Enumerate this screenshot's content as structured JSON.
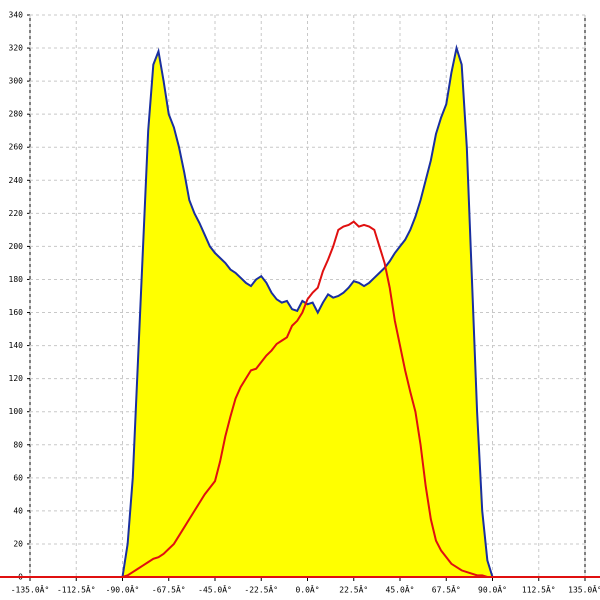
{
  "chart_data": {
    "type": "area",
    "x": [
      -90,
      -87.5,
      -85,
      -82.5,
      -80,
      -77.5,
      -75,
      -72.5,
      -70,
      -67.5,
      -65,
      -62.5,
      -60,
      -57.5,
      -55,
      -52.5,
      -50,
      -47.5,
      -45,
      -42.5,
      -40,
      -37.5,
      -35,
      -32.5,
      -30,
      -27.5,
      -25,
      -22.5,
      -20,
      -17.5,
      -15,
      -12.5,
      -10,
      -7.5,
      -5,
      -2.5,
      0,
      2.5,
      5,
      7.5,
      10,
      12.5,
      15,
      17.5,
      20,
      22.5,
      25,
      27.5,
      30,
      32.5,
      35,
      37.5,
      40,
      42.5,
      45,
      47.5,
      50,
      52.5,
      55,
      57.5,
      60,
      62.5,
      65,
      67.5,
      70,
      72.5,
      75,
      77.5,
      80,
      82.5,
      85,
      87.5,
      90
    ],
    "series": [
      {
        "color": "#1a2fa0",
        "fill": "#ffff00",
        "values": [
          0,
          20,
          60,
          130,
          200,
          270,
          310,
          318,
          300,
          280,
          272,
          260,
          245,
          228,
          220,
          214,
          207,
          200,
          196,
          193,
          190,
          186,
          184,
          181,
          178,
          176,
          180,
          182,
          178,
          172,
          168,
          166,
          167,
          162,
          161,
          167,
          165,
          166,
          160,
          166,
          171,
          169,
          170,
          172,
          175,
          179,
          178,
          176,
          178,
          181,
          184,
          187,
          191,
          196,
          200,
          204,
          210,
          218,
          228,
          240,
          252,
          268,
          278,
          286,
          305,
          320,
          310,
          260,
          180,
          100,
          40,
          10,
          0
        ]
      },
      {
        "color": "#e01010",
        "values": [
          0,
          1,
          3,
          5,
          7,
          9,
          11,
          12,
          14,
          17,
          20,
          25,
          30,
          35,
          40,
          45,
          50,
          54,
          58,
          70,
          85,
          97,
          108,
          115,
          120,
          125,
          126,
          130,
          134,
          137,
          141,
          143,
          145,
          152,
          155,
          160,
          168,
          172,
          175,
          185,
          192,
          200,
          210,
          212,
          213,
          215,
          212,
          213,
          212,
          210,
          200,
          190,
          175,
          155,
          140,
          125,
          112,
          100,
          80,
          55,
          35,
          22,
          16,
          12,
          8,
          6,
          4,
          3,
          2,
          1,
          1,
          0,
          0
        ]
      }
    ],
    "xlim": [
      -135,
      135
    ],
    "xticks": [
      {
        "value": -135,
        "label": "-135.0Â°"
      },
      {
        "value": -112.5,
        "label": "-112.5Â°"
      },
      {
        "value": -90,
        "label": "-90.0Â°"
      },
      {
        "value": -67.5,
        "label": "-67.5Â°"
      },
      {
        "value": -45,
        "label": "-45.0Â°"
      },
      {
        "value": -22.5,
        "label": "-22.5Â°"
      },
      {
        "value": 0,
        "label": "0.0Â°"
      },
      {
        "value": 22.5,
        "label": "22.5Â°"
      },
      {
        "value": 45,
        "label": "45.0Â°"
      },
      {
        "value": 67.5,
        "label": "67.5Â°"
      },
      {
        "value": 90,
        "label": "90.0Â°"
      },
      {
        "value": 112.5,
        "label": "112.5Â°"
      },
      {
        "value": 135,
        "label": "135.0Â°"
      }
    ],
    "ylim": [
      0,
      340
    ],
    "yticks": [
      0,
      20,
      40,
      60,
      80,
      100,
      120,
      140,
      160,
      180,
      200,
      220,
      240,
      260,
      280,
      300,
      320,
      340
    ],
    "grid": true
  }
}
